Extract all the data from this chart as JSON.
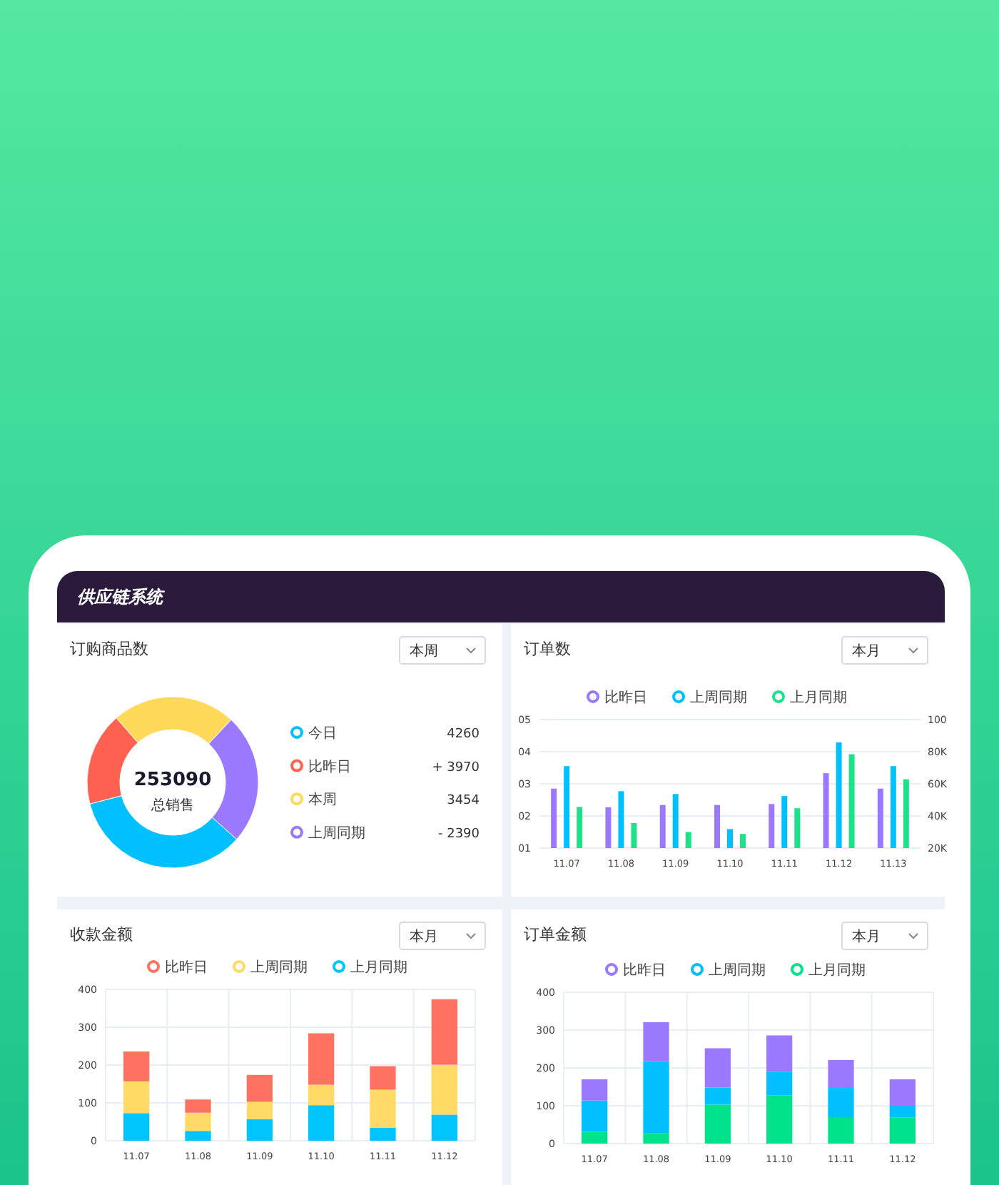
{
  "chart_data": [
    {
      "type": "other",
      "title": "供应链系统"
    },
    {
      "type": "donut",
      "title": "订购商品数",
      "subtitle": "本周",
      "categories": [
        "今日",
        "比昨日",
        "本周",
        "上周同期"
      ],
      "values": [
        34.4,
        17.6,
        23.4,
        24.6
      ],
      "colors": [
        "#00c0ff",
        "#ff6150",
        "#ffd95a",
        "#9b79ff"
      ],
      "annotations": [
        "253090",
        "总销售",
        "4260",
        "+ 3970",
        "3454",
        "- 2390"
      ],
      "legend": "right"
    },
    {
      "type": "bar",
      "title": "订单数",
      "subtitle": "本月",
      "categories": [
        "11.07",
        "11.08",
        "11.09",
        "11.10",
        "11.11",
        "11.12",
        "11.13"
      ],
      "series": [
        {
          "name": "比昨日",
          "color": "#9b79ff",
          "values": [
            2.85,
            2.27,
            2.34,
            2.34,
            2.37,
            3.33,
            2.85
          ]
        },
        {
          "name": "上周同期",
          "color": "#00c0ff",
          "values": [
            3.55,
            2.77,
            2.68,
            1.59,
            2.62,
            4.29,
            3.55
          ]
        },
        {
          "name": "上月同期",
          "color": "#1de28a",
          "values": [
            2.28,
            1.78,
            1.5,
            1.44,
            2.24,
            3.92,
            3.14
          ]
        }
      ],
      "ylim": [
        1,
        5
      ],
      "yticks": [
        {
          "value": 1,
          "label": "01"
        },
        {
          "value": 2,
          "label": "02"
        },
        {
          "value": 3,
          "label": "03"
        },
        {
          "value": 4,
          "label": "04"
        },
        {
          "value": 5,
          "label": "05"
        }
      ],
      "y2lim": [
        20,
        100
      ],
      "y2ticks": [
        {
          "value": 20,
          "label": "20K"
        },
        {
          "value": 40,
          "label": "40K"
        },
        {
          "value": 60,
          "label": "60K"
        },
        {
          "value": 80,
          "label": "80K"
        },
        {
          "value": 100,
          "label": "100"
        }
      ],
      "grid": "y",
      "legend": "top"
    },
    {
      "type": "bar",
      "title": "收款金额",
      "subtitle": "本月",
      "categories": [
        "11.07",
        "11.08",
        "11.09",
        "11.10",
        "11.11",
        "11.12"
      ],
      "stacked": true,
      "series": [
        {
          "name": "上月同期",
          "color": "#00c5fc",
          "values": [
            73,
            26,
            57,
            94,
            34,
            69
          ]
        },
        {
          "name": "上周同期",
          "color": "#ffda66",
          "values": [
            84,
            48,
            46,
            54,
            101,
            132
          ]
        },
        {
          "name": "比昨日",
          "color": "#ff7261",
          "values": [
            79,
            35,
            71,
            136,
            62,
            173
          ]
        }
      ],
      "ylim": [
        0,
        400
      ],
      "yticks": [
        0,
        100,
        200,
        300,
        400
      ],
      "grid": true,
      "legend": "top"
    },
    {
      "type": "bar",
      "title": "订单金额",
      "subtitle": "本月",
      "categories": [
        "11.07",
        "11.08",
        "11.09",
        "11.10",
        "11.11",
        "11.12"
      ],
      "stacked": true,
      "series": [
        {
          "name": "上月同期",
          "color": "#00e38a",
          "values": [
            31,
            28,
            103,
            127,
            68,
            69
          ]
        },
        {
          "name": "上周同期",
          "color": "#00c0ff",
          "values": [
            83,
            190,
            45,
            63,
            79,
            33
          ]
        },
        {
          "name": "比昨日",
          "color": "#9b79ff",
          "values": [
            56,
            103,
            104,
            96,
            74,
            68
          ]
        }
      ],
      "ylim": [
        0,
        400
      ],
      "yticks": [
        0,
        100,
        200,
        300,
        400
      ],
      "grid": true,
      "legend": "top"
    }
  ]
}
